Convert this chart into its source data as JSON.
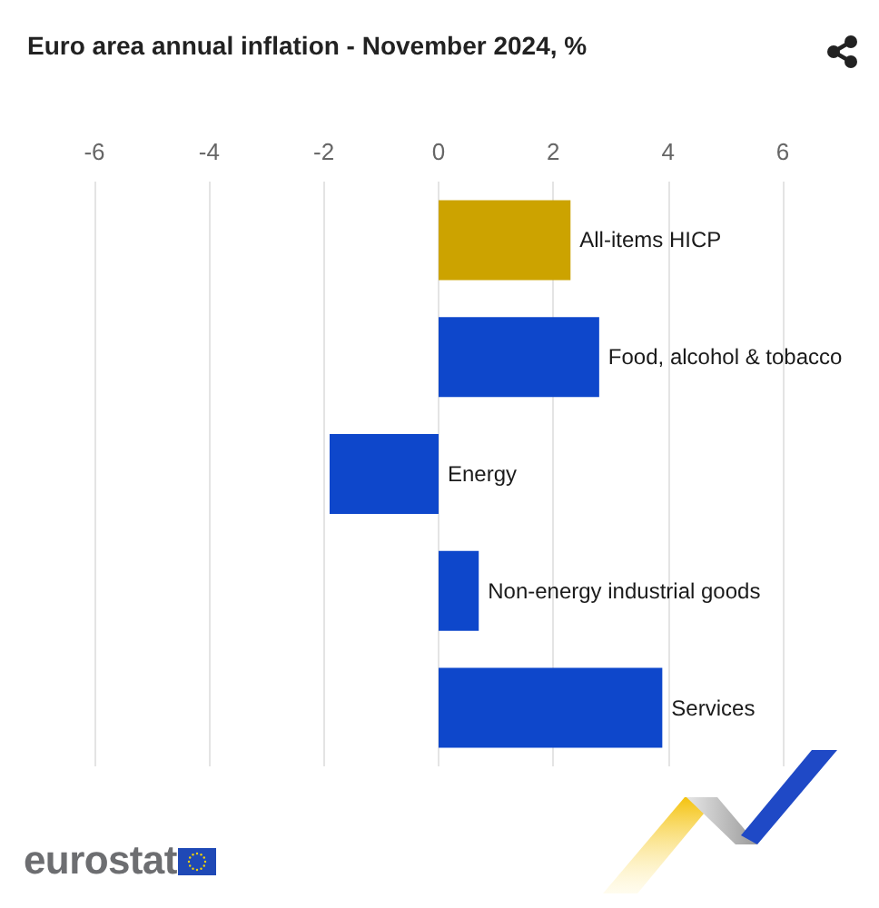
{
  "chart_data": {
    "type": "bar",
    "title": "Euro area annual inflation - November 2024, %",
    "orientation": "horizontal",
    "categories": [
      "All-items HICP",
      "Food, alcohol & tobacco",
      "Energy",
      "Non-energy industrial goods",
      "Services"
    ],
    "values": [
      2.3,
      2.8,
      -1.9,
      0.7,
      3.9
    ],
    "colors": [
      "#cca300",
      "#0e47cb",
      "#0e47cb",
      "#0e47cb",
      "#0e47cb"
    ],
    "xlim": [
      -6,
      6
    ],
    "xticks": [
      -6,
      -4,
      -2,
      0,
      2,
      4,
      6
    ],
    "grid": "x",
    "annotations": [
      "eurostat"
    ]
  }
}
